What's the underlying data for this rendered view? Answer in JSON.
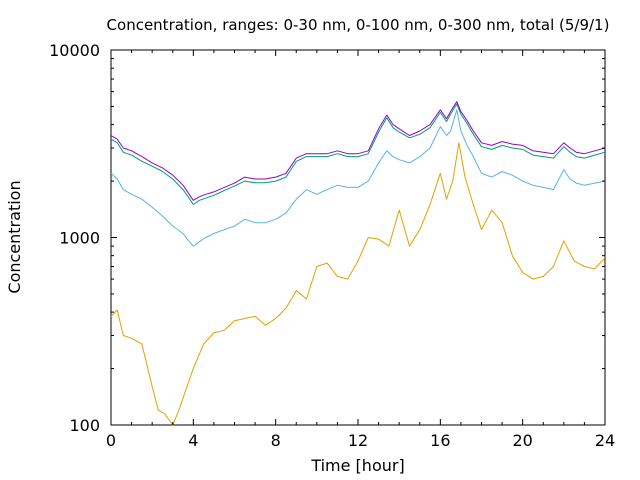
{
  "chart_data": {
    "type": "line",
    "title": "Concentration, ranges: 0-30 nm, 0-100 nm, 0-300 nm, total (5/9/1)",
    "xlabel": "Time [hour]",
    "ylabel": "Concentration",
    "xlim": [
      0,
      24
    ],
    "ylim": [
      100,
      10000
    ],
    "yscale": "log",
    "x_ticks": [
      0,
      4,
      8,
      12,
      16,
      20,
      24
    ],
    "y_ticks": [
      100,
      1000,
      10000
    ],
    "grid": false,
    "legend": "none",
    "series": [
      {
        "color": "#9400d3",
        "x": [
          0,
          0.3,
          0.6,
          1,
          1.5,
          2,
          2.5,
          3,
          3.5,
          3.8,
          4,
          4.3,
          4.6,
          5,
          5.5,
          6,
          6.5,
          7,
          7.5,
          8,
          8.5,
          9,
          9.5,
          10,
          10.5,
          11,
          11.5,
          12,
          12.5,
          13,
          13.4,
          13.7,
          14,
          14.5,
          15,
          15.5,
          16,
          16.3,
          16.5,
          16.8,
          17,
          17.3,
          17.6,
          18,
          18.5,
          19,
          19.5,
          20,
          20.5,
          21,
          21.5,
          22,
          22.3,
          22.6,
          23,
          23.5,
          24
        ],
        "values": [
          3500,
          3350,
          3000,
          2900,
          2700,
          2500,
          2350,
          2150,
          1900,
          1700,
          1580,
          1650,
          1700,
          1750,
          1850,
          1950,
          2100,
          2050,
          2050,
          2100,
          2200,
          2650,
          2800,
          2800,
          2800,
          2900,
          2800,
          2800,
          2900,
          3800,
          4500,
          4000,
          3800,
          3500,
          3700,
          4000,
          4800,
          4300,
          4700,
          5300,
          4700,
          4200,
          3700,
          3200,
          3100,
          3250,
          3150,
          3100,
          2900,
          2850,
          2800,
          3200,
          3000,
          2850,
          2800,
          2900,
          3000
        ]
      },
      {
        "color": "#009e73",
        "x": [
          0,
          0.3,
          0.6,
          1,
          1.5,
          2,
          2.5,
          3,
          3.5,
          3.8,
          4,
          4.3,
          4.6,
          5,
          5.5,
          6,
          6.5,
          7,
          7.5,
          8,
          8.5,
          9,
          9.5,
          10,
          10.5,
          11,
          11.5,
          12,
          12.5,
          13,
          13.4,
          13.7,
          14,
          14.5,
          15,
          15.5,
          16,
          16.3,
          16.5,
          16.8,
          17,
          17.3,
          17.6,
          18,
          18.5,
          19,
          19.5,
          20,
          20.5,
          21,
          21.5,
          22,
          22.3,
          22.6,
          23,
          23.5,
          24
        ],
        "values": [
          3350,
          3200,
          2850,
          2750,
          2550,
          2400,
          2250,
          2050,
          1800,
          1620,
          1500,
          1580,
          1620,
          1680,
          1780,
          1880,
          2000,
          1960,
          1960,
          2000,
          2100,
          2550,
          2700,
          2700,
          2700,
          2800,
          2700,
          2700,
          2800,
          3650,
          4350,
          3850,
          3650,
          3400,
          3550,
          3850,
          4650,
          4150,
          4550,
          5150,
          4550,
          4050,
          3550,
          3050,
          2950,
          3100,
          3000,
          2950,
          2750,
          2700,
          2650,
          3050,
          2850,
          2700,
          2650,
          2750,
          2850
        ]
      },
      {
        "color": "#56b4e9",
        "x": [
          0,
          0.3,
          0.6,
          1,
          1.5,
          2,
          2.5,
          3,
          3.5,
          3.8,
          4,
          4.3,
          4.6,
          5,
          5.5,
          6,
          6.5,
          7,
          7.5,
          8,
          8.5,
          9,
          9.5,
          10,
          10.5,
          11,
          11.5,
          12,
          12.5,
          13,
          13.4,
          13.7,
          14,
          14.5,
          15,
          15.5,
          16,
          16.3,
          16.5,
          16.8,
          17,
          17.3,
          17.6,
          18,
          18.5,
          19,
          19.5,
          20,
          20.5,
          21,
          21.5,
          22,
          22.3,
          22.6,
          23,
          23.5,
          24
        ],
        "values": [
          2200,
          2050,
          1800,
          1700,
          1600,
          1450,
          1300,
          1150,
          1050,
          950,
          900,
          950,
          1000,
          1050,
          1100,
          1150,
          1250,
          1200,
          1200,
          1250,
          1350,
          1600,
          1800,
          1700,
          1800,
          1900,
          1850,
          1850,
          2000,
          2500,
          2900,
          2700,
          2600,
          2500,
          2700,
          3000,
          3900,
          3500,
          3700,
          4800,
          3700,
          3100,
          2700,
          2200,
          2100,
          2250,
          2150,
          2000,
          1900,
          1850,
          1800,
          2300,
          2050,
          1950,
          1900,
          1950,
          2000
        ]
      },
      {
        "color": "#e69f00",
        "x": [
          0,
          0.3,
          0.6,
          1,
          1.5,
          2,
          2.3,
          2.6,
          3,
          3.3,
          3.6,
          4,
          4.5,
          5,
          5.5,
          6,
          6.5,
          7,
          7.5,
          8,
          8.5,
          9,
          9.5,
          10,
          10.5,
          11,
          11.5,
          12,
          12.5,
          13,
          13.5,
          14,
          14.5,
          15,
          15.5,
          16,
          16.3,
          16.6,
          16.9,
          17.2,
          17.6,
          18,
          18.5,
          19,
          19.5,
          20,
          20.5,
          21,
          21.5,
          22,
          22.5,
          23,
          23.5,
          24
        ],
        "values": [
          380,
          410,
          300,
          290,
          270,
          160,
          120,
          115,
          100,
          120,
          150,
          200,
          270,
          310,
          320,
          360,
          370,
          380,
          340,
          370,
          420,
          520,
          470,
          700,
          730,
          620,
          600,
          750,
          1000,
          980,
          900,
          1400,
          900,
          1100,
          1500,
          2200,
          1600,
          2000,
          3200,
          2100,
          1500,
          1100,
          1400,
          1200,
          800,
          650,
          600,
          620,
          700,
          960,
          750,
          700,
          680,
          780
        ]
      }
    ]
  }
}
